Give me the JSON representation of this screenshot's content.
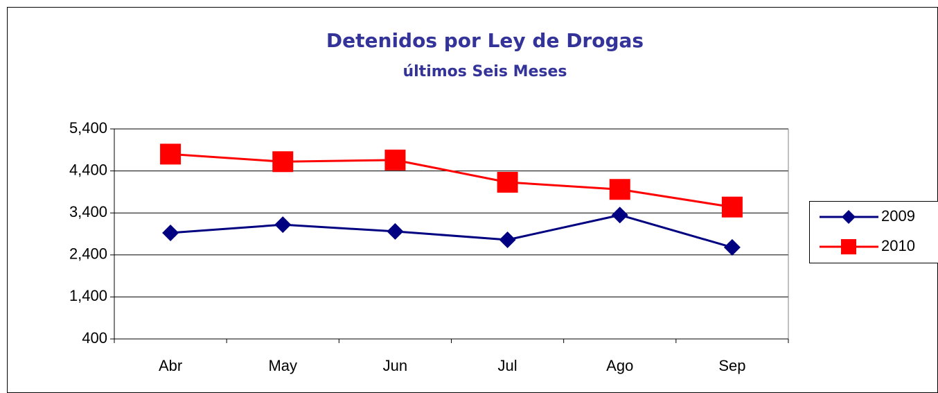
{
  "chart_data": {
    "type": "line",
    "title": "Detenidos por Ley de Drogas",
    "subtitle": "últimos Seis Meses",
    "categories": [
      "Abr",
      "May",
      "Jun",
      "Jul",
      "Ago",
      "Sep"
    ],
    "series": [
      {
        "name": "2009",
        "color": "#000080",
        "marker": "diamond",
        "values": [
          2925,
          3120,
          2960,
          2760,
          3350,
          2580
        ]
      },
      {
        "name": "2010",
        "color": "#ff0000",
        "marker": "square",
        "values": [
          4800,
          4620,
          4660,
          4130,
          3960,
          3540
        ]
      }
    ],
    "ylim": [
      400,
      5400
    ],
    "yticks": [
      400,
      {
        "value": 1400,
        "label": "1,400"
      },
      {
        "value": 2400,
        "label": "2,400"
      },
      {
        "value": 3400,
        "label": "3,400"
      },
      {
        "value": 4400,
        "label": "4,400"
      },
      {
        "value": 5400,
        "label": "5,400"
      }
    ],
    "grid": true,
    "legend": "right"
  }
}
